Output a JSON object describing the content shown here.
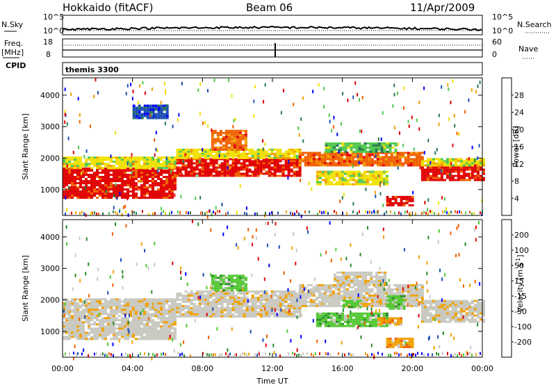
{
  "header": {
    "site": "Hokkaido (fitACF)",
    "beam": "Beam 06",
    "date": "11/Apr/2009"
  },
  "top_panels": {
    "nsky_label": "N.Sky",
    "nsearch_label": "N.Search",
    "nsky_ticks": [
      "10^5",
      "10^0"
    ],
    "nsky_right_ticks": [
      "10^5",
      "10^0"
    ],
    "freq_label": "Freq.",
    "freq_unit": "[MHz]",
    "freq_ticks": [
      "18",
      "8"
    ],
    "nave_label": "Nave",
    "nave_ticks": [
      "60",
      "0"
    ],
    "cpid_label": "CPID",
    "cpid_value": "themis 3300"
  },
  "chart_data": [
    {
      "type": "heatmap",
      "panel": "power",
      "ylabel": "Slant Range [km]",
      "yticks": [
        "4000",
        "3000",
        "2000",
        "1000"
      ],
      "ylim": [
        180,
        4550
      ],
      "xlim": [
        0,
        24
      ],
      "colorbar_label": "Power [dB]",
      "colorbar_ticks": [
        "28",
        "24",
        "20",
        "16",
        "12",
        "8",
        "4"
      ],
      "colorbar_colors": [
        "#0000ff",
        "#1e50b4",
        "#287850",
        "#50c850",
        "#f0e000",
        "#f0a000",
        "#f06000",
        "#e00000"
      ],
      "bands": [
        {
          "x0": 0.0,
          "x1": 6.5,
          "y0": 750,
          "y1": 1700,
          "level": 7
        },
        {
          "x0": 0.0,
          "x1": 6.5,
          "y0": 1700,
          "y1": 2050,
          "level": 4
        },
        {
          "x0": 6.5,
          "x1": 13.5,
          "y0": 1450,
          "y1": 2000,
          "level": 7
        },
        {
          "x0": 6.5,
          "x1": 13.5,
          "y0": 2000,
          "y1": 2300,
          "level": 4
        },
        {
          "x0": 8.5,
          "x1": 10.5,
          "y0": 2300,
          "y1": 2900,
          "level": 6
        },
        {
          "x0": 13.5,
          "x1": 20.5,
          "y0": 1800,
          "y1": 2200,
          "level": 6
        },
        {
          "x0": 15.0,
          "x1": 19.0,
          "y0": 2200,
          "y1": 2500,
          "level": 3
        },
        {
          "x0": 14.5,
          "x1": 18.5,
          "y0": 1200,
          "y1": 1600,
          "level": 4
        },
        {
          "x0": 18.5,
          "x1": 20.0,
          "y0": 500,
          "y1": 800,
          "level": 7
        },
        {
          "x0": 20.5,
          "x1": 24.0,
          "y0": 1300,
          "y1": 1800,
          "level": 7
        },
        {
          "x0": 20.5,
          "x1": 24.0,
          "y0": 1800,
          "y1": 2000,
          "level": 4
        },
        {
          "x0": 4.0,
          "x1": 6.0,
          "y0": 3300,
          "y1": 3700,
          "level": 1
        }
      ]
    },
    {
      "type": "heatmap",
      "panel": "velocity",
      "xlabel": "Time UT",
      "ylabel": "Slant Range [km]",
      "xticks": [
        "00:00",
        "04:00",
        "08:00",
        "12:00",
        "16:00",
        "20:00",
        "00:00"
      ],
      "yticks": [
        "4000",
        "3000",
        "2000",
        "1000"
      ],
      "ylim": [
        180,
        4550
      ],
      "xlim": [
        0,
        24
      ],
      "colorbar_label": "Velocity [m s",
      "colorbar_unit_sup": "-1",
      "colorbar_ticks": [
        "200",
        "100",
        "50",
        "15",
        "-15",
        "-50",
        "-100",
        "-200"
      ],
      "colorbar_colors": [
        "#e00000",
        "#f06000",
        "#f0a000",
        "#c8c8c0",
        "#c8c8c0",
        "#50c830",
        "#288c28",
        "#1e50b4",
        "#0000ff"
      ],
      "bands": [
        {
          "x0": 0.0,
          "x1": 6.5,
          "y0": 750,
          "y1": 2050,
          "level": 3
        },
        {
          "x0": 6.5,
          "x1": 13.5,
          "y0": 1450,
          "y1": 2300,
          "level": 3
        },
        {
          "x0": 8.5,
          "x1": 10.5,
          "y0": 2300,
          "y1": 2800,
          "level": 5
        },
        {
          "x0": 13.5,
          "x1": 20.5,
          "y0": 1800,
          "y1": 2500,
          "level": 3
        },
        {
          "x0": 15.5,
          "x1": 18.5,
          "y0": 2500,
          "y1": 2900,
          "level": 3
        },
        {
          "x0": 14.5,
          "x1": 18.5,
          "y0": 1200,
          "y1": 1600,
          "level": 5
        },
        {
          "x0": 18.5,
          "x1": 20.0,
          "y0": 500,
          "y1": 800,
          "level": 2
        },
        {
          "x0": 18.0,
          "x1": 19.3,
          "y0": 1200,
          "y1": 1450,
          "level": 2
        },
        {
          "x0": 18.5,
          "x1": 19.5,
          "y0": 1750,
          "y1": 2150,
          "level": 5
        },
        {
          "x0": 20.5,
          "x1": 24.0,
          "y0": 1300,
          "y1": 2000,
          "level": 3
        },
        {
          "x0": 16.0,
          "x1": 17.0,
          "y0": 1800,
          "y1": 2000,
          "level": 5
        }
      ]
    }
  ]
}
